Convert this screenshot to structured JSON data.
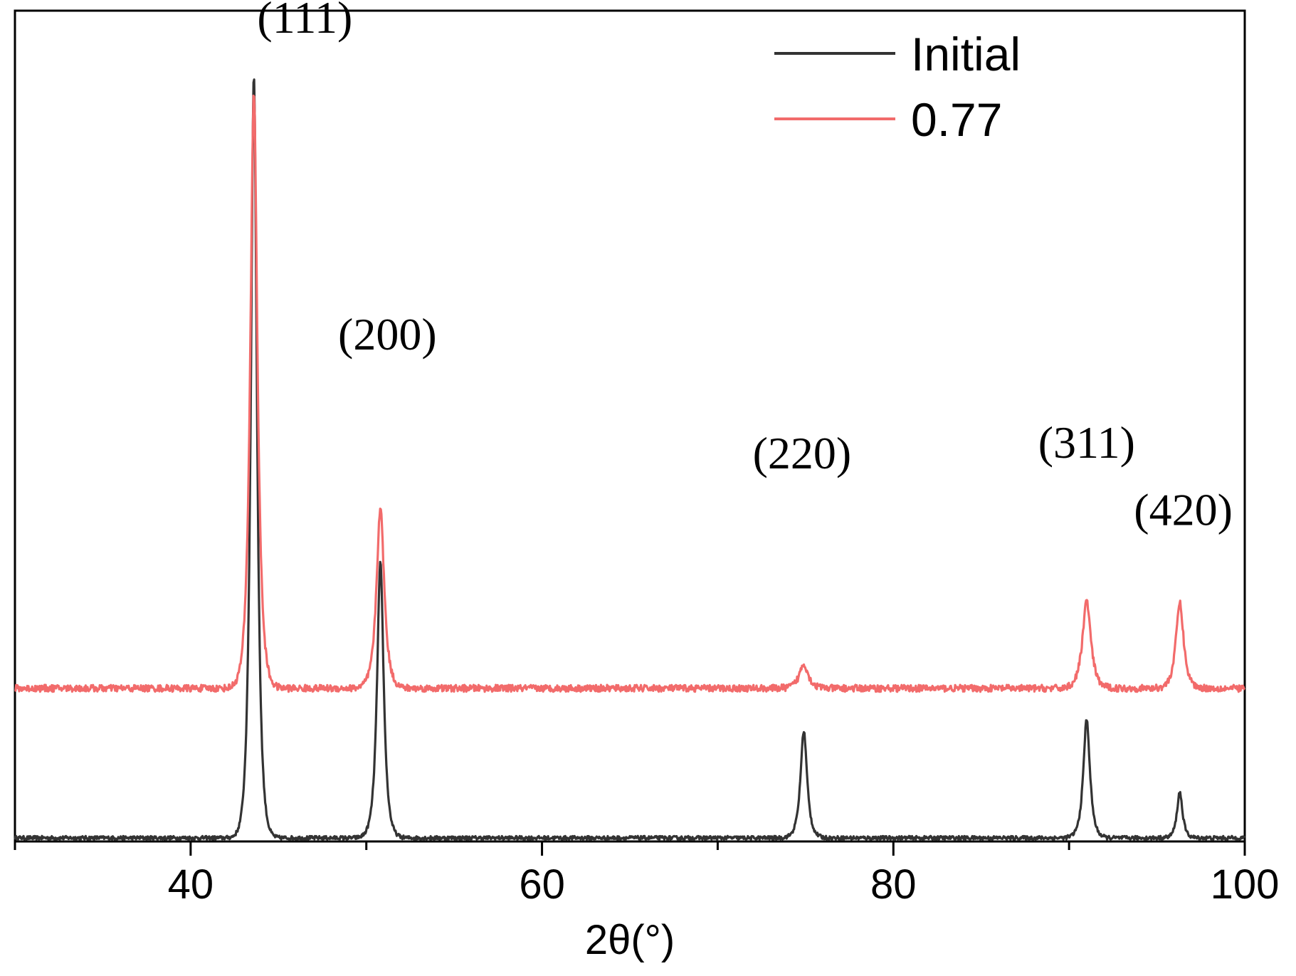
{
  "chart_data": {
    "type": "line",
    "title": "",
    "xlabel": "2θ(°)",
    "ylabel": "",
    "xlim": [
      30,
      100
    ],
    "ylim": [
      0,
      1
    ],
    "x_ticks": [
      40,
      60,
      80,
      100
    ],
    "x_minor_ticks": [
      30,
      50,
      70,
      90
    ],
    "y_ticks_shown": false,
    "grid": false,
    "legend_position": "top-right",
    "colors": {
      "initial": "#333333",
      "sample": "#f26b6b",
      "axis": "#000000"
    },
    "series": [
      {
        "name": "Initial",
        "baseline": 0.0,
        "peaks": [
          {
            "x": 43.6,
            "height": 1.0,
            "width": 0.28
          },
          {
            "x": 50.8,
            "height": 0.36,
            "width": 0.3
          },
          {
            "x": 74.9,
            "height": 0.14,
            "width": 0.3
          },
          {
            "x": 91.0,
            "height": 0.155,
            "width": 0.3
          },
          {
            "x": 96.3,
            "height": 0.06,
            "width": 0.25
          }
        ]
      },
      {
        "name": "0.77",
        "baseline": 0.196,
        "peaks": [
          {
            "x": 43.6,
            "height": 0.78,
            "width": 0.32
          },
          {
            "x": 50.8,
            "height": 0.236,
            "width": 0.35
          },
          {
            "x": 74.9,
            "height": 0.032,
            "width": 0.4
          },
          {
            "x": 91.0,
            "height": 0.114,
            "width": 0.38
          },
          {
            "x": 96.3,
            "height": 0.112,
            "width": 0.35
          }
        ]
      }
    ],
    "annotations": [
      {
        "text": "(111)",
        "x": 46.5,
        "y": 1.055
      },
      {
        "text": "(200)",
        "x": 51.2,
        "y": 0.64
      },
      {
        "text": "(220)",
        "x": 74.8,
        "y": 0.484
      },
      {
        "text": "(311)",
        "x": 91.0,
        "y": 0.498
      },
      {
        "text": "(420)",
        "x": 96.5,
        "y": 0.41
      }
    ]
  }
}
